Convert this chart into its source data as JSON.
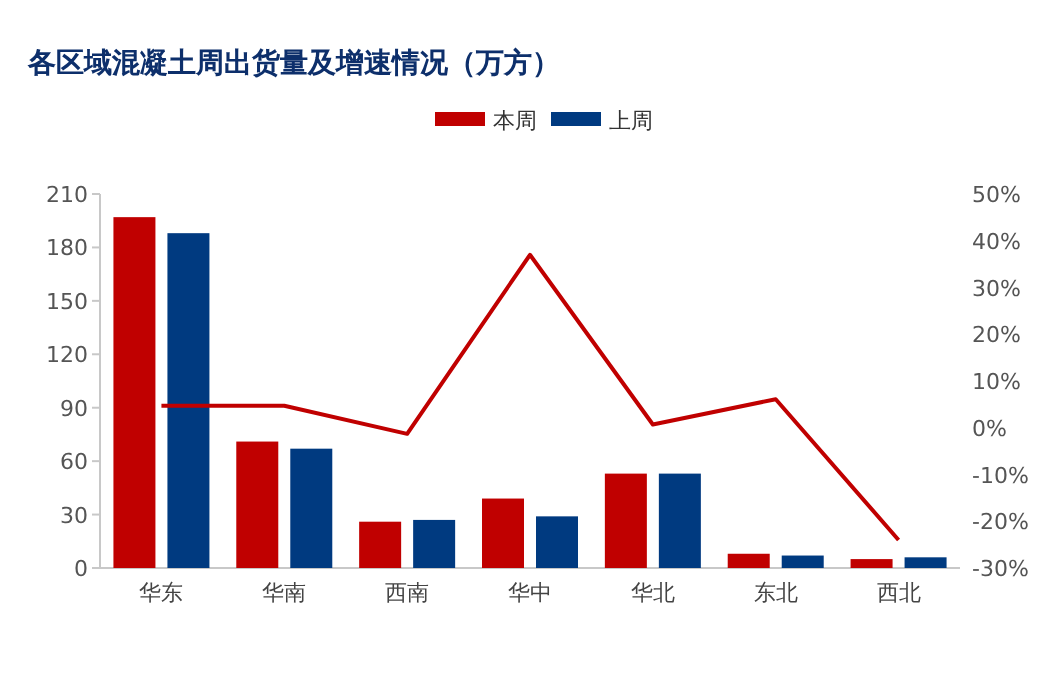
{
  "chart_data": {
    "type": "bar",
    "title": "各区域混凝土周出货量及增速情况（万方）",
    "categories": [
      "华东",
      "华南",
      "西南",
      "华中",
      "华北",
      "东北",
      "西北"
    ],
    "series": [
      {
        "name": "本周",
        "color": "#c00000",
        "values": [
          197,
          71,
          26,
          39,
          53,
          8,
          5
        ]
      },
      {
        "name": "上周",
        "color": "#003a80",
        "values": [
          188,
          67,
          27,
          29,
          53,
          7,
          6
        ]
      },
      {
        "type": "line",
        "axis": "y2",
        "color": "#c00000",
        "values": [
          4.7,
          4.7,
          -1.3,
          37,
          0.7,
          6.1,
          -24
        ]
      }
    ],
    "ylim": [
      0,
      210
    ],
    "yticks": [
      0,
      30,
      60,
      90,
      120,
      150,
      180,
      210
    ],
    "y2lim": [
      -30,
      50
    ],
    "y2ticks": [
      {
        "value": -30,
        "label": "-30%"
      },
      {
        "value": -20,
        "label": "-20%"
      },
      {
        "value": -10,
        "label": "-10%"
      },
      {
        "value": 0,
        "label": "0%"
      },
      {
        "value": 10,
        "label": "10%"
      },
      {
        "value": 20,
        "label": "20%"
      },
      {
        "value": 30,
        "label": "30%"
      },
      {
        "value": 40,
        "label": "40%"
      },
      {
        "value": 50,
        "label": "50%"
      }
    ],
    "legend": "top"
  }
}
